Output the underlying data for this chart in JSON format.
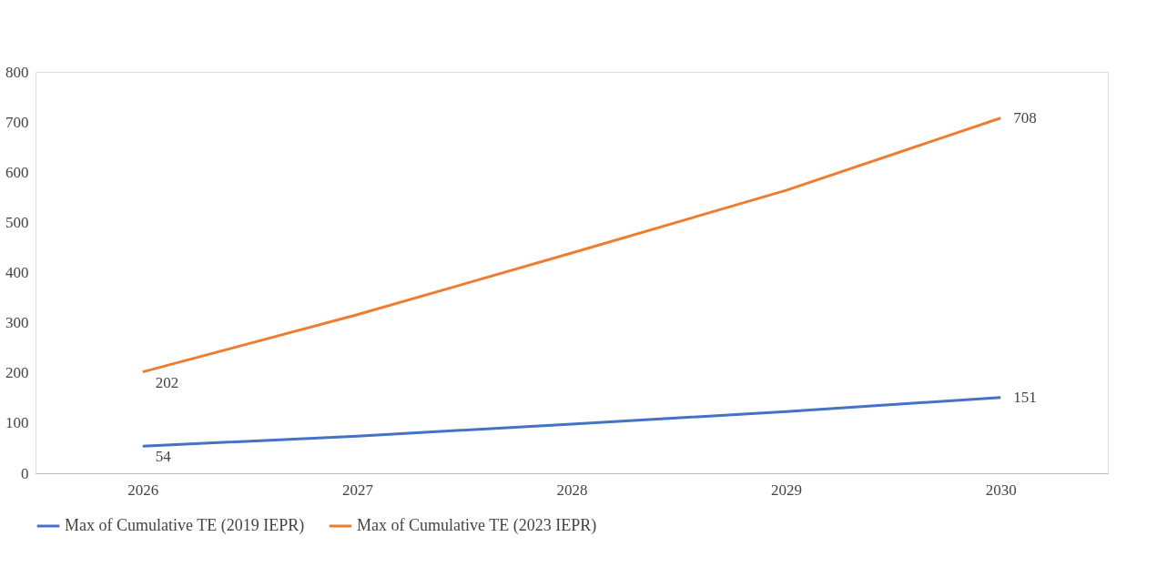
{
  "chart_data": {
    "type": "line",
    "categories": [
      "2026",
      "2027",
      "2028",
      "2029",
      "2030"
    ],
    "ylim": [
      0,
      800
    ],
    "yticks": [
      0,
      100,
      200,
      300,
      400,
      500,
      600,
      700,
      800
    ],
    "grid": false,
    "legend": "bottom",
    "marker": "none",
    "line_style": "solid",
    "series": [
      {
        "name": "Max of Cumulative TE (2019 IEPR)",
        "color": "#4472c4",
        "values": [
          54,
          74,
          98,
          123,
          151
        ],
        "value_labels": [
          "54",
          null,
          null,
          null,
          "151"
        ]
      },
      {
        "name": "Max of Cumulative TE (2023 IEPR)",
        "color": "#ed7d31",
        "values": [
          202,
          316,
          439,
          564,
          708
        ],
        "value_labels": [
          "202",
          null,
          null,
          null,
          "708"
        ]
      }
    ]
  }
}
